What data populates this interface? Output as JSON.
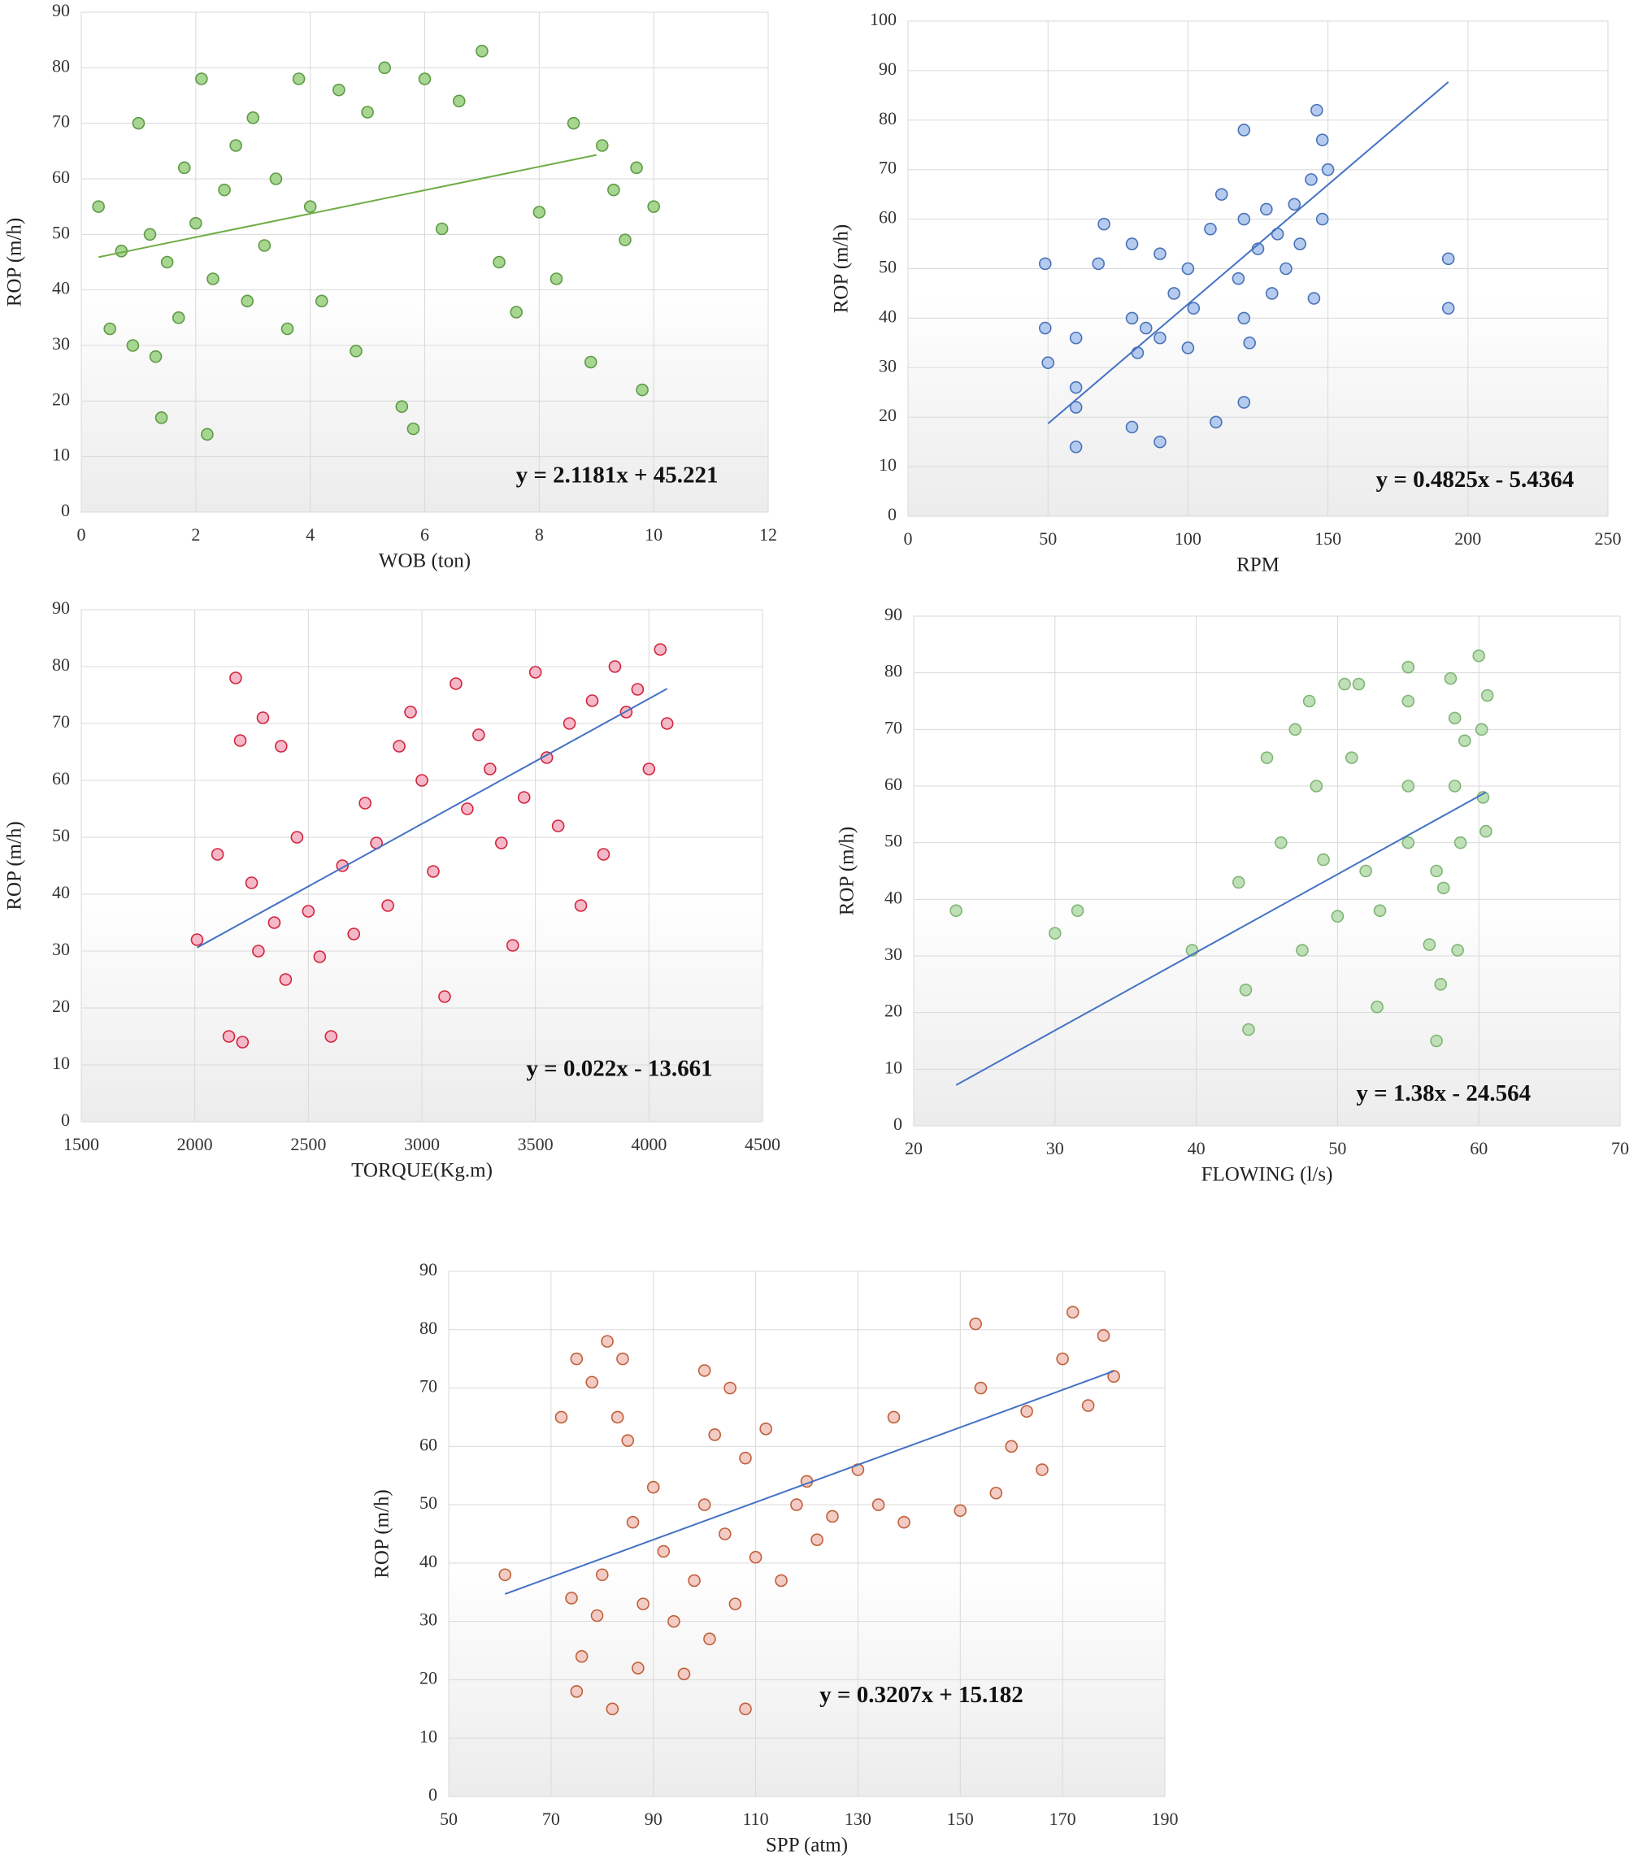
{
  "chart_data": [
    {
      "type": "scatter",
      "xlabel": "WOB (ton)",
      "ylabel": "ROP (m/h)",
      "annotation": "y = 2.1181x + 45.221",
      "x": [
        0.3,
        0.5,
        0.7,
        0.9,
        1.0,
        1.2,
        1.3,
        1.4,
        1.5,
        1.7,
        1.8,
        2.0,
        2.1,
        2.2,
        2.3,
        2.5,
        2.7,
        2.9,
        3.0,
        3.2,
        3.4,
        3.6,
        3.8,
        4.0,
        4.2,
        4.5,
        4.8,
        5.0,
        5.3,
        5.6,
        5.8,
        6.0,
        6.3,
        6.6,
        7.0,
        7.3,
        7.6,
        8.0,
        8.3,
        8.6,
        8.9,
        9.1,
        9.3,
        9.5,
        9.7,
        9.8,
        10.0
      ],
      "values": [
        55,
        33,
        47,
        30,
        70,
        50,
        28,
        17,
        45,
        35,
        62,
        52,
        78,
        14,
        42,
        58,
        66,
        38,
        71,
        48,
        60,
        33,
        78,
        55,
        38,
        76,
        29,
        72,
        80,
        19,
        15,
        78,
        51,
        74,
        83,
        45,
        36,
        54,
        42,
        70,
        27,
        66,
        58,
        49,
        62,
        22,
        55
      ],
      "color": "#a6d68f",
      "edgecolor": "#5f9a47",
      "trendline": {
        "x": [
          0.3,
          9.0
        ],
        "values": [
          45.9,
          64.3
        ],
        "color": "#70ad47"
      },
      "xlim": [
        0,
        12
      ],
      "ylim": [
        0,
        90
      ],
      "xticks": [
        0,
        2,
        4,
        6,
        8,
        10,
        12
      ],
      "yticks": [
        0,
        10,
        20,
        30,
        40,
        50,
        60,
        70,
        80,
        90
      ],
      "grid": true
    },
    {
      "type": "scatter",
      "xlabel": "RPM",
      "ylabel": "ROP (m/h)",
      "annotation": "y = 0.4825x - 5.4364",
      "x": [
        49,
        49,
        50,
        60,
        60,
        60,
        60,
        68,
        70,
        80,
        80,
        80,
        82,
        85,
        90,
        90,
        90,
        95,
        100,
        100,
        102,
        108,
        110,
        112,
        118,
        120,
        120,
        120,
        120,
        122,
        125,
        128,
        130,
        132,
        135,
        138,
        140,
        144,
        145,
        146,
        148,
        148,
        150,
        193,
        193
      ],
      "values": [
        51,
        38,
        31,
        36,
        26,
        14,
        22,
        51,
        59,
        55,
        40,
        18,
        33,
        38,
        53,
        15,
        36,
        45,
        34,
        50,
        42,
        58,
        19,
        65,
        48,
        78,
        60,
        40,
        23,
        35,
        54,
        62,
        45,
        57,
        50,
        63,
        55,
        68,
        44,
        82,
        76,
        60,
        70,
        52,
        42
      ],
      "color": "#b4cbef",
      "edgecolor": "#4a72b8",
      "trendline": {
        "x": [
          50,
          193
        ],
        "values": [
          18.7,
          87.7
        ],
        "color": "#4472c4"
      },
      "xlim": [
        0,
        250
      ],
      "ylim": [
        0,
        100
      ],
      "xticks": [
        0,
        50,
        100,
        150,
        200,
        250
      ],
      "yticks": [
        0,
        10,
        20,
        30,
        40,
        50,
        60,
        70,
        80,
        90,
        100
      ],
      "grid": true
    },
    {
      "type": "scatter",
      "xlabel": "TORQUE(Kg.m)",
      "ylabel": "ROP (m/h)",
      "annotation": "y = 0.022x - 13.661",
      "x": [
        2010,
        2100,
        2150,
        2180,
        2200,
        2210,
        2250,
        2280,
        2300,
        2350,
        2380,
        2400,
        2450,
        2500,
        2550,
        2600,
        2650,
        2700,
        2750,
        2800,
        2850,
        2900,
        2950,
        3000,
        3050,
        3100,
        3150,
        3200,
        3250,
        3300,
        3350,
        3400,
        3450,
        3500,
        3550,
        3600,
        3650,
        3700,
        3750,
        3800,
        3850,
        3900,
        3950,
        4000,
        4050,
        4080
      ],
      "values": [
        32,
        47,
        15,
        78,
        67,
        14,
        42,
        30,
        71,
        35,
        66,
        25,
        50,
        37,
        29,
        15,
        45,
        33,
        56,
        49,
        38,
        66,
        72,
        60,
        44,
        22,
        77,
        55,
        68,
        62,
        49,
        31,
        57,
        79,
        64,
        52,
        70,
        38,
        74,
        47,
        80,
        72,
        76,
        62,
        83,
        70
      ],
      "color": "#f5b8c8",
      "edgecolor": "#d2243c",
      "trendline": {
        "x": [
          2010,
          4080
        ],
        "values": [
          30.6,
          76.1
        ],
        "color": "#4472c4"
      },
      "xlim": [
        1500,
        4500
      ],
      "ylim": [
        0,
        90
      ],
      "xticks": [
        1500,
        2000,
        2500,
        3000,
        3500,
        4000,
        4500
      ],
      "yticks": [
        0,
        10,
        20,
        30,
        40,
        50,
        60,
        70,
        80,
        90
      ],
      "grid": true
    },
    {
      "type": "scatter",
      "xlabel": "FLOWING (l/s)",
      "ylabel": "ROP (m/h)",
      "annotation": "y = 1.38x - 24.564",
      "x": [
        23,
        30,
        31.6,
        39.7,
        43,
        43.5,
        43.7,
        45,
        46,
        47,
        47.5,
        48,
        48.5,
        49,
        50,
        50.5,
        51,
        51.5,
        52,
        52.8,
        53,
        55,
        55,
        55,
        55,
        56.5,
        57,
        57,
        57.3,
        57.5,
        58,
        58.3,
        58.3,
        58.5,
        58.7,
        59,
        60,
        60.2,
        60.3,
        60.5,
        60.6
      ],
      "values": [
        38,
        34,
        38,
        31,
        43,
        24,
        17,
        65,
        50,
        70,
        31,
        75,
        60,
        47,
        37,
        78,
        65,
        78,
        45,
        21,
        38,
        81,
        75,
        60,
        50,
        32,
        15,
        45,
        25,
        42,
        79,
        72,
        60,
        31,
        50,
        68,
        83,
        70,
        58,
        52,
        76
      ],
      "color": "#bfe0b6",
      "edgecolor": "#7fb575",
      "trendline": {
        "x": [
          23,
          60.5
        ],
        "values": [
          7.2,
          58.9
        ],
        "color": "#4472c4"
      },
      "xlim": [
        20,
        70
      ],
      "ylim": [
        0,
        90
      ],
      "xticks": [
        20,
        30,
        40,
        50,
        60,
        70
      ],
      "yticks": [
        0,
        10,
        20,
        30,
        40,
        50,
        60,
        70,
        80,
        90
      ],
      "grid": true
    },
    {
      "type": "scatter",
      "xlabel": "SPP (atm)",
      "ylabel": "ROP (m/h)",
      "annotation": "y = 0.3207x + 15.182",
      "x": [
        61,
        72,
        74,
        75,
        75,
        76,
        78,
        79,
        80,
        81,
        82,
        83,
        84,
        85,
        86,
        87,
        88,
        90,
        92,
        94,
        96,
        98,
        100,
        100,
        101,
        102,
        104,
        105,
        106,
        108,
        108,
        110,
        112,
        115,
        118,
        120,
        122,
        125,
        130,
        134,
        137,
        139,
        150,
        153,
        154,
        157,
        160,
        163,
        166,
        170,
        172,
        175,
        178,
        180
      ],
      "values": [
        38,
        65,
        34,
        75,
        18,
        24,
        71,
        31,
        38,
        78,
        15,
        65,
        75,
        61,
        47,
        22,
        33,
        53,
        42,
        30,
        21,
        37,
        73,
        50,
        27,
        62,
        45,
        70,
        33,
        58,
        15,
        41,
        63,
        37,
        50,
        54,
        44,
        48,
        56,
        50,
        65,
        47,
        49,
        81,
        70,
        52,
        60,
        66,
        56,
        75,
        83,
        67,
        79,
        72
      ],
      "color": "#f2cbc4",
      "edgecolor": "#c0603a",
      "trendline": {
        "x": [
          61,
          180
        ],
        "values": [
          34.7,
          72.9
        ],
        "color": "#4472c4"
      },
      "xlim": [
        50,
        190
      ],
      "ylim": [
        0,
        90
      ],
      "xticks": [
        50,
        70,
        90,
        110,
        130,
        150,
        170,
        190
      ],
      "yticks": [
        0,
        10,
        20,
        30,
        40,
        50,
        60,
        70,
        80,
        90
      ],
      "grid": true
    }
  ]
}
